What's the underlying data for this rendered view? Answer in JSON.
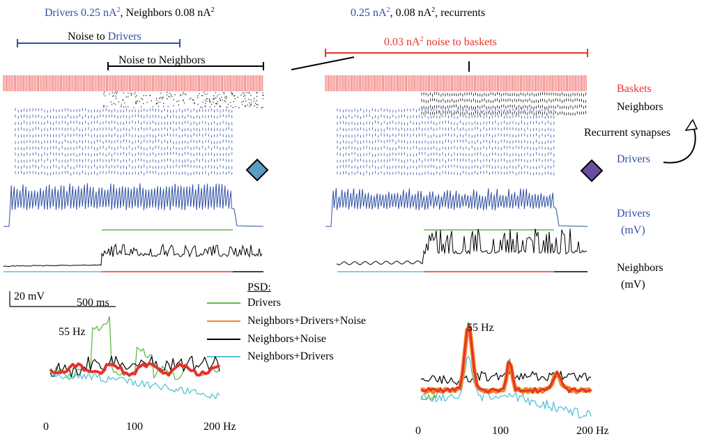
{
  "header_left": {
    "drivers": "Drivers 0.25 nA",
    "sep": ",",
    "neighbors": " Neighbors 0.08 nA"
  },
  "header_right": {
    "a": "0.25 nA",
    "b": ", 0.08 nA",
    "c": ", recurrents"
  },
  "noise_drivers": {
    "prefix": "Noise to ",
    "target": "Drivers"
  },
  "noise_neighbors": "Noise to Neighbors",
  "noise_baskets": {
    "a": "0.03 nA",
    "b": " noise to baskets"
  },
  "sup2": "2",
  "labels": {
    "baskets": "Baskets",
    "neighbors": "Neighbors",
    "recurrent": "Recurrent synapses",
    "drivers": "Drivers",
    "drivers_mv_1": "Drivers",
    "drivers_mv_2": "(mV)",
    "neighbors_mv_1": "Neighbors",
    "neighbors_mv_2": "(mV)"
  },
  "scalebar": {
    "voltage": "20 mV",
    "time": "500 ms"
  },
  "psd_legend": {
    "title": "PSD:",
    "items": [
      {
        "label": "Drivers",
        "color": "#5fb84a"
      },
      {
        "label": "Neighbors+Drivers+Noise",
        "color": "#f08a24"
      },
      {
        "label": "Neighbors+Noise",
        "color": "#000000"
      },
      {
        "label": "Neighbors+Drivers",
        "color": "#56c2d6"
      }
    ]
  },
  "psd_left": {
    "peak": "55 Hz",
    "tick0": "0",
    "tick100": "100",
    "tick200": "200 Hz"
  },
  "psd_right": {
    "peak": "55 Hz",
    "tick0": "0",
    "tick100": "100",
    "tick200": "200 Hz"
  },
  "colors": {
    "blue": "#2e4fa3",
    "red": "#e8302a",
    "green": "#5fb84a",
    "cyan": "#56c2d6",
    "orange": "#f08a24",
    "diamond_left": "#5b9dc2",
    "diamond_right": "#6b4f9e"
  }
}
